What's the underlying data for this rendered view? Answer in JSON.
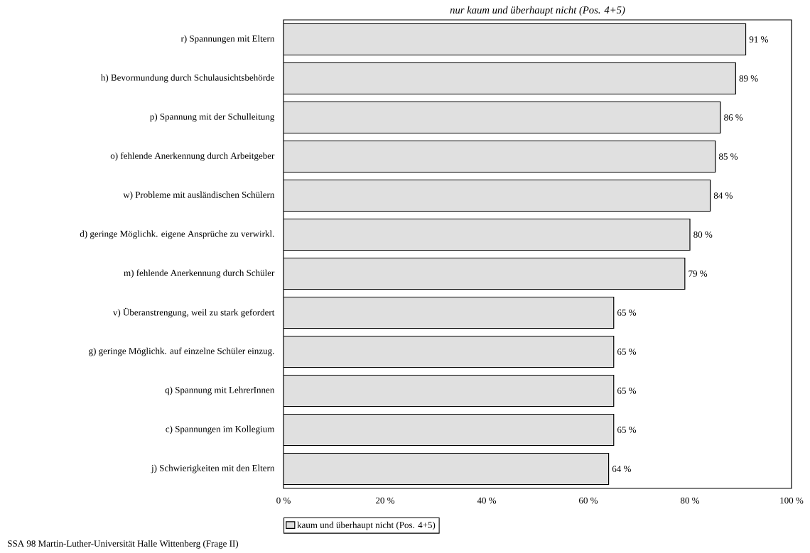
{
  "chart_data": {
    "type": "bar",
    "orientation": "horizontal",
    "title": "*nur kaum und überhaupt nicht (Pos. 4+5)*",
    "categories": [
      "r) Spannungen mit Eltern",
      "h) Bevormundung durch Schulausichtsbehörde",
      "p) Spannung mit der Schulleitung",
      "o) fehlende Anerkennung durch Arbeitgeber",
      "w) Probleme mit ausländischen Schülern",
      "d) geringe Möglichk. eigene Ansprüche zu verwirkl.",
      "m) fehlende Anerkennung durch Schüler",
      "v) Überanstrengung, weil zu stark gefordert",
      "g) geringe Möglichk. auf einzelne Schüler einzug.",
      "q) Spannung mit LehrerInnen",
      "c) Spannungen im Kollegium",
      "j) Schwierigkeiten mit den Eltern"
    ],
    "series": [
      {
        "name": "kaum und überhaupt nicht (Pos. 4+5)",
        "color": "#e0e0e0",
        "values": [
          91,
          89,
          86,
          85,
          84,
          80,
          79,
          65,
          65,
          65,
          65,
          64
        ],
        "value_labels": [
          "91 %",
          "89 %",
          "86 %",
          "85 %",
          "84 %",
          "80 %",
          "79 %",
          "65 %",
          "65 %",
          "65 %",
          "65 %",
          "64 %"
        ]
      }
    ],
    "xlim": [
      0,
      100
    ],
    "xticks": [
      {
        "value": 0,
        "label": "0 %"
      },
      {
        "value": 20,
        "label": "20 %"
      },
      {
        "value": 40,
        "label": "40 %"
      },
      {
        "value": 60,
        "label": "60 %"
      },
      {
        "value": 80,
        "label": "80 %"
      },
      {
        "value": 100,
        "label": "100 %"
      }
    ],
    "legend": "bottom",
    "annotations": [
      "SSA 98 Martin-Luther-Universität Halle Wittenberg (Frage II)"
    ]
  }
}
